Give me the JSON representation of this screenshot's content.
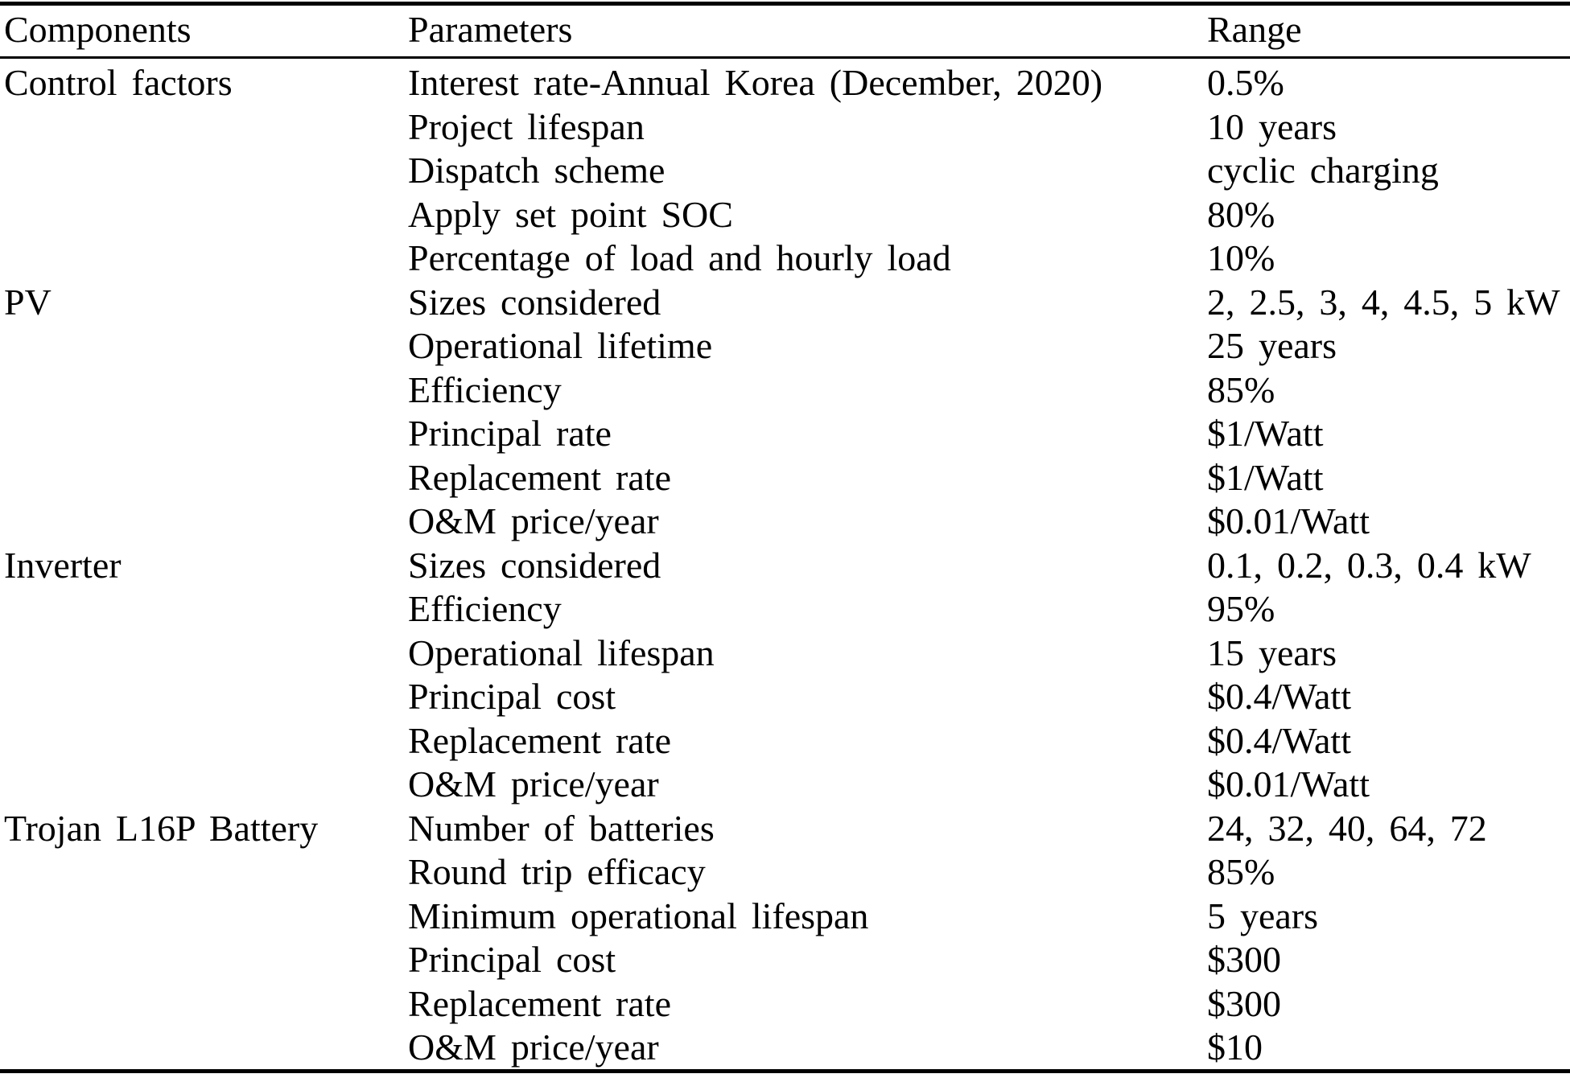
{
  "colors": {
    "background": "#ffffff",
    "text": "#000000",
    "rule": "#000000"
  },
  "table": {
    "headers": {
      "components": "Components",
      "parameters": "Parameters",
      "range": "Range"
    },
    "rows": [
      {
        "component": "Control factors",
        "parameter": "Interest rate-Annual Korea (December, 2020)",
        "range": "0.5%"
      },
      {
        "component": "",
        "parameter": "Project lifespan",
        "range": "10 years"
      },
      {
        "component": "",
        "parameter": "Dispatch scheme",
        "range": "cyclic charging"
      },
      {
        "component": "",
        "parameter": "Apply set point SOC",
        "range": "80%"
      },
      {
        "component": "",
        "parameter": "Percentage of load and hourly load",
        "range": "10%"
      },
      {
        "component": "PV",
        "parameter": "Sizes considered",
        "range": "2, 2.5, 3, 4, 4.5, 5 kW"
      },
      {
        "component": "",
        "parameter": "Operational lifetime",
        "range": "25 years"
      },
      {
        "component": "",
        "parameter": "Efficiency",
        "range": "85%"
      },
      {
        "component": "",
        "parameter": "Principal rate",
        "range": "$1/Watt"
      },
      {
        "component": "",
        "parameter": "Replacement rate",
        "range": "$1/Watt"
      },
      {
        "component": "",
        "parameter": "O&M price/year",
        "range": "$0.01/Watt"
      },
      {
        "component": "Inverter",
        "parameter": "Sizes considered",
        "range": "0.1, 0.2, 0.3, 0.4 kW"
      },
      {
        "component": "",
        "parameter": "Efficiency",
        "range": "95%"
      },
      {
        "component": "",
        "parameter": "Operational lifespan",
        "range": "15 years"
      },
      {
        "component": "",
        "parameter": "Principal cost",
        "range": "$0.4/Watt"
      },
      {
        "component": "",
        "parameter": "Replacement rate",
        "range": "$0.4/Watt"
      },
      {
        "component": "",
        "parameter": "O&M price/year",
        "range": "$0.01/Watt"
      },
      {
        "component": "Trojan L16P Battery",
        "parameter": "Number of batteries",
        "range": "24, 32, 40, 64, 72"
      },
      {
        "component": "",
        "parameter": "Round trip efficacy",
        "range": "85%"
      },
      {
        "component": "",
        "parameter": "Minimum operational lifespan",
        "range": "5 years"
      },
      {
        "component": "",
        "parameter": "Principal cost",
        "range": "$300"
      },
      {
        "component": "",
        "parameter": "Replacement rate",
        "range": "$300"
      },
      {
        "component": "",
        "parameter": "O&M price/year",
        "range": "$10"
      }
    ]
  }
}
